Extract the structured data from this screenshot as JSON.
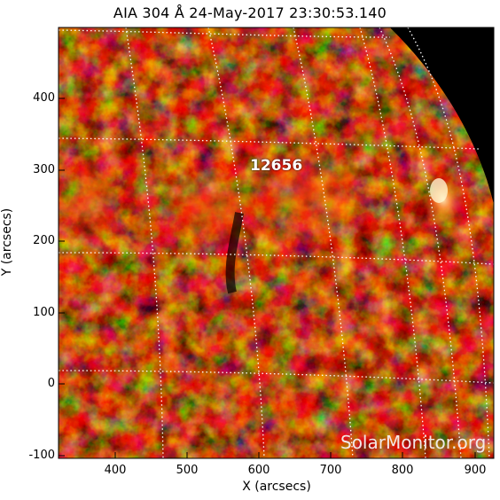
{
  "title": "AIA 304 Å 24-May-2017 23:30:53.140",
  "axes": {
    "xlabel": "X (arcsecs)",
    "ylabel": "Y (arcsecs)",
    "xticks": [
      "400",
      "500",
      "600",
      "700",
      "800",
      "900"
    ],
    "yticks": [
      "400",
      "300",
      "200",
      "100",
      "0",
      "-100"
    ],
    "xlim": [
      320,
      925
    ],
    "ylim": [
      -105,
      500
    ]
  },
  "active_region_label": "12656",
  "watermark": "SolarMonitor.org",
  "colors": {
    "background_disk": "#200300",
    "plasma_dark": "#5a0c00",
    "plasma_mid": "#b52a00",
    "plasma_bright": "#ff7a2a",
    "grid": "#ffffff",
    "off_limb": "#000000"
  }
}
